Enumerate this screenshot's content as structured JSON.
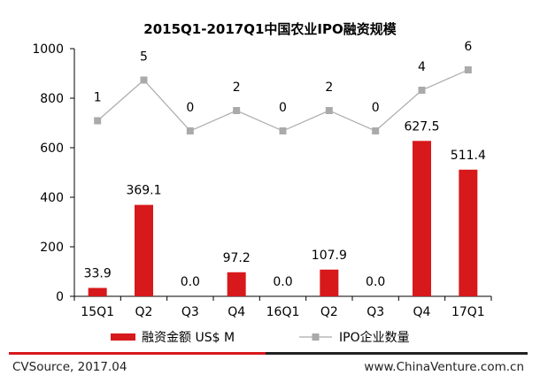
{
  "chart_data": {
    "type": "bar",
    "title": "2015Q1-2017Q1中国农业IPO融资规模",
    "categories": [
      "15Q1",
      "Q2",
      "Q3",
      "Q4",
      "16Q1",
      "Q2",
      "Q3",
      "Q4",
      "17Q1"
    ],
    "y_ticks": [
      "0",
      "200",
      "400",
      "600",
      "800",
      "1000"
    ],
    "ylim": [
      0,
      1000
    ],
    "series": [
      {
        "name": "融资金额 US$ M",
        "type": "bar",
        "color": "#d7191c",
        "values": [
          33.9,
          369.1,
          0.0,
          97.2,
          0.0,
          107.9,
          0.0,
          627.5,
          511.4
        ],
        "labels": [
          "33.9",
          "369.1",
          "0.0",
          "97.2",
          "0.0",
          "107.9",
          "0.0",
          "627.5",
          "511.4"
        ]
      },
      {
        "name": "IPO企业数量",
        "type": "line",
        "color": "#aaaaaa",
        "values": [
          1,
          5,
          0,
          2,
          0,
          2,
          0,
          4,
          6
        ],
        "labels": [
          "1",
          "5",
          "0",
          "2",
          "0",
          "2",
          "0",
          "4",
          "6"
        ]
      }
    ],
    "grid": false,
    "legend": "bottom"
  },
  "footer": {
    "source": "CVSource, 2017.04",
    "website": "www.ChinaVenture.com.cn"
  }
}
